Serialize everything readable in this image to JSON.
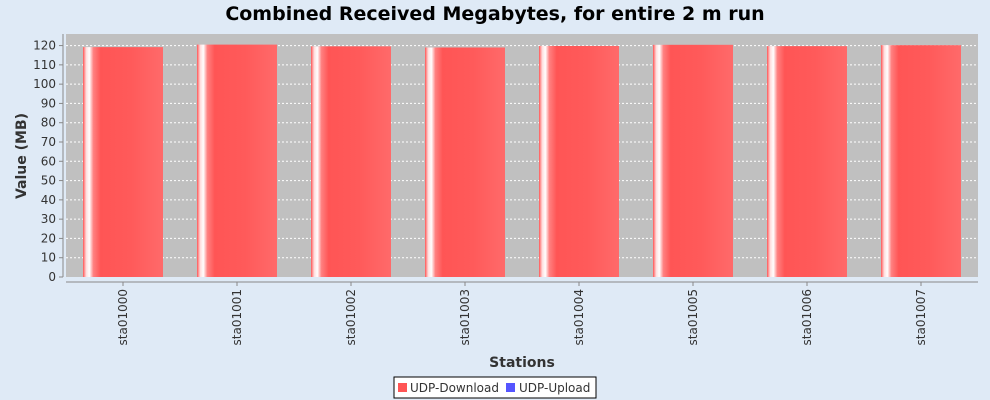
{
  "chart_data": {
    "type": "bar",
    "title": "Combined Received Megabytes, for entire 2 m run",
    "xlabel": "Stations",
    "ylabel": "Value (MB)",
    "ylim": [
      0,
      126
    ],
    "yticks": [
      0,
      10,
      20,
      30,
      40,
      50,
      60,
      70,
      80,
      90,
      100,
      110,
      120
    ],
    "grid": true,
    "legend_position": "bottom-center",
    "categories": [
      "sta01000",
      "sta01001",
      "sta01002",
      "sta01003",
      "sta01004",
      "sta01005",
      "sta01006",
      "sta01007"
    ],
    "series": [
      {
        "name": "UDP-Download",
        "color": "#ff5555",
        "values": [
          119.2,
          120.5,
          119.6,
          119.0,
          119.8,
          120.4,
          119.7,
          120.2
        ]
      },
      {
        "name": "UDP-Upload",
        "color": "#5555ff",
        "values": [
          0,
          0,
          0,
          0,
          0,
          0,
          0,
          0
        ]
      }
    ]
  }
}
